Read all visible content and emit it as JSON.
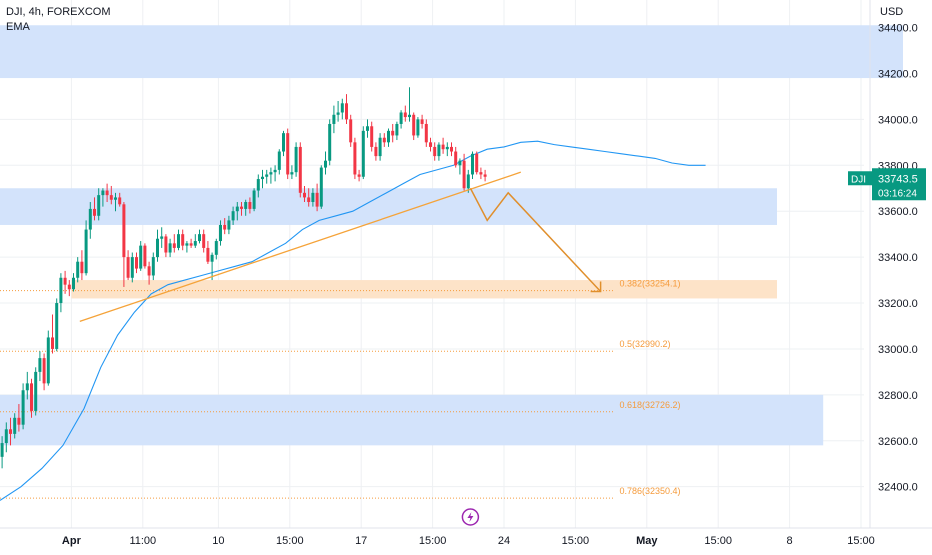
{
  "header": {
    "symbol_line": "DJI, 4h, FOREXCOM",
    "indicator": "EMA",
    "currency": "USD"
  },
  "colors": {
    "up": "#089981",
    "down": "#f23645",
    "ema": "#2196f3",
    "zone": "#d1e1fb",
    "fib_zone": "#fde3c8",
    "fib_text": "#f59b3c",
    "projection": "#e08f2c",
    "trendline": "#f5a339",
    "grid": "#eef0f3",
    "axis_text": "#131722",
    "price_tag": "#089981"
  },
  "chart_data": {
    "type": "candlestick",
    "title": "DJI, 4h, FOREXCOM",
    "ylabel": "USD",
    "ylim": [
      32220,
      34520
    ],
    "price_ticks": [
      34400.0,
      34200.0,
      34000.0,
      33800.0,
      33600.0,
      33400.0,
      33200.0,
      33000.0,
      32800.0,
      32600.0,
      32400.0
    ],
    "price_tick_labels": [
      "34400.0",
      "34200.0",
      "34000.0",
      "33800.0",
      "33600.0",
      "33400.0",
      "33200.0",
      "33000.0",
      "32800.0",
      "32600.0",
      "32400.0"
    ],
    "x_ticks": [
      {
        "label": "Apr",
        "bar": 17,
        "bold": true
      },
      {
        "label": "11:00",
        "bar": 34,
        "bold": false
      },
      {
        "label": "10",
        "bar": 52,
        "bold": false
      },
      {
        "label": "15:00",
        "bar": 69,
        "bold": false
      },
      {
        "label": "17",
        "bar": 86,
        "bold": false
      },
      {
        "label": "15:00",
        "bar": 103,
        "bold": false
      },
      {
        "label": "24",
        "bar": 120,
        "bold": false
      },
      {
        "label": "15:00",
        "bar": 137,
        "bold": false
      },
      {
        "label": "May",
        "bar": 154,
        "bold": true
      },
      {
        "label": "15:00",
        "bar": 171,
        "bold": false
      },
      {
        "label": "8",
        "bar": 188,
        "bold": false
      },
      {
        "label": "15:00",
        "bar": 205,
        "bold": false
      }
    ],
    "candles": [
      [
        32530,
        32620,
        32480,
        32590
      ],
      [
        32590,
        32680,
        32550,
        32650
      ],
      [
        32650,
        32700,
        32580,
        32630
      ],
      [
        32630,
        32720,
        32610,
        32700
      ],
      [
        32700,
        32760,
        32640,
        32670
      ],
      [
        32670,
        32850,
        32650,
        32820
      ],
      [
        32820,
        32900,
        32780,
        32850
      ],
      [
        32850,
        32870,
        32700,
        32730
      ],
      [
        32730,
        32920,
        32710,
        32900
      ],
      [
        32900,
        32990,
        32860,
        32960
      ],
      [
        32960,
        32980,
        32820,
        32850
      ],
      [
        32850,
        33080,
        32840,
        33050
      ],
      [
        33050,
        33150,
        32980,
        33000
      ],
      [
        33000,
        33220,
        32990,
        33200
      ],
      [
        33200,
        33330,
        33160,
        33310
      ],
      [
        33310,
        33340,
        33240,
        33280
      ],
      [
        33280,
        33300,
        33230,
        33260
      ],
      [
        33260,
        33330,
        33250,
        33310
      ],
      [
        33310,
        33400,
        33290,
        33380
      ],
      [
        33380,
        33430,
        33300,
        33330
      ],
      [
        33330,
        33560,
        33320,
        33520
      ],
      [
        33520,
        33640,
        33480,
        33610
      ],
      [
        33610,
        33660,
        33560,
        33580
      ],
      [
        33580,
        33700,
        33560,
        33670
      ],
      [
        33670,
        33700,
        33620,
        33690
      ],
      [
        33690,
        33720,
        33640,
        33670
      ],
      [
        33670,
        33710,
        33630,
        33650
      ],
      [
        33650,
        33680,
        33600,
        33660
      ],
      [
        33660,
        33680,
        33620,
        33630
      ],
      [
        33630,
        33640,
        33270,
        33400
      ],
      [
        33400,
        33430,
        33300,
        33310
      ],
      [
        33310,
        33420,
        33290,
        33400
      ],
      [
        33400,
        33420,
        33330,
        33350
      ],
      [
        33350,
        33470,
        33340,
        33450
      ],
      [
        33450,
        33460,
        33350,
        33360
      ],
      [
        33360,
        33380,
        33280,
        33320
      ],
      [
        33320,
        33420,
        33300,
        33400
      ],
      [
        33400,
        33520,
        33380,
        33480
      ],
      [
        33480,
        33530,
        33440,
        33490
      ],
      [
        33490,
        33500,
        33400,
        33420
      ],
      [
        33420,
        33480,
        33400,
        33460
      ],
      [
        33460,
        33500,
        33420,
        33440
      ],
      [
        33440,
        33520,
        33430,
        33500
      ],
      [
        33500,
        33520,
        33430,
        33450
      ],
      [
        33450,
        33470,
        33420,
        33460
      ],
      [
        33460,
        33480,
        33440,
        33450
      ],
      [
        33450,
        33500,
        33440,
        33470
      ],
      [
        33470,
        33520,
        33460,
        33500
      ],
      [
        33500,
        33520,
        33420,
        33440
      ],
      [
        33440,
        33470,
        33370,
        33380
      ],
      [
        33380,
        33420,
        33300,
        33410
      ],
      [
        33410,
        33480,
        33390,
        33470
      ],
      [
        33470,
        33560,
        33450,
        33540
      ],
      [
        33540,
        33570,
        33500,
        33520
      ],
      [
        33520,
        33580,
        33500,
        33560
      ],
      [
        33560,
        33620,
        33540,
        33600
      ],
      [
        33600,
        33640,
        33560,
        33620
      ],
      [
        33620,
        33640,
        33580,
        33610
      ],
      [
        33610,
        33650,
        33580,
        33640
      ],
      [
        33640,
        33660,
        33590,
        33610
      ],
      [
        33610,
        33700,
        33600,
        33690
      ],
      [
        33690,
        33760,
        33660,
        33740
      ],
      [
        33740,
        33780,
        33700,
        33750
      ],
      [
        33750,
        33780,
        33720,
        33760
      ],
      [
        33760,
        33790,
        33720,
        33770
      ],
      [
        33770,
        33800,
        33730,
        33780
      ],
      [
        33780,
        33870,
        33760,
        33860
      ],
      [
        33860,
        33950,
        33840,
        33940
      ],
      [
        33940,
        33960,
        33740,
        33760
      ],
      [
        33760,
        33800,
        33740,
        33770
      ],
      [
        33770,
        33900,
        33750,
        33880
      ],
      [
        33880,
        33900,
        33660,
        33680
      ],
      [
        33680,
        33710,
        33640,
        33660
      ],
      [
        33660,
        33700,
        33620,
        33640
      ],
      [
        33640,
        33700,
        33620,
        33680
      ],
      [
        33680,
        33720,
        33600,
        33620
      ],
      [
        33620,
        33800,
        33610,
        33790
      ],
      [
        33790,
        33860,
        33760,
        33820
      ],
      [
        33820,
        34000,
        33800,
        33980
      ],
      [
        33980,
        34060,
        33940,
        34020
      ],
      [
        34020,
        34080,
        33990,
        34030
      ],
      [
        34030,
        34090,
        34000,
        34070
      ],
      [
        34070,
        34110,
        33980,
        34000
      ],
      [
        34000,
        34020,
        33880,
        33900
      ],
      [
        33900,
        33920,
        33740,
        33760
      ],
      [
        33760,
        33780,
        33730,
        33750
      ],
      [
        33750,
        33970,
        33740,
        33950
      ],
      [
        33950,
        34000,
        33920,
        33970
      ],
      [
        33970,
        33990,
        33860,
        33880
      ],
      [
        33880,
        33900,
        33820,
        33840
      ],
      [
        33840,
        33940,
        33820,
        33920
      ],
      [
        33920,
        33940,
        33880,
        33900
      ],
      [
        33900,
        33960,
        33880,
        33950
      ],
      [
        33950,
        33980,
        33900,
        33930
      ],
      [
        33930,
        33990,
        33910,
        33980
      ],
      [
        33980,
        34040,
        33960,
        34030
      ],
      [
        34030,
        34060,
        33990,
        34010
      ],
      [
        34010,
        34140,
        33990,
        34020
      ],
      [
        34020,
        34030,
        33910,
        33930
      ],
      [
        33930,
        34010,
        33920,
        34000
      ],
      [
        34000,
        34020,
        33960,
        33980
      ],
      [
        33980,
        34000,
        33880,
        33900
      ],
      [
        33900,
        33920,
        33860,
        33880
      ],
      [
        33880,
        33900,
        33820,
        33840
      ],
      [
        33840,
        33900,
        33820,
        33890
      ],
      [
        33890,
        33920,
        33850,
        33870
      ],
      [
        33870,
        33900,
        33840,
        33880
      ],
      [
        33880,
        33900,
        33840,
        33860
      ],
      [
        33860,
        33880,
        33790,
        33800
      ],
      [
        33800,
        33830,
        33760,
        33820
      ],
      [
        33820,
        33850,
        33690,
        33700
      ],
      [
        33700,
        33780,
        33680,
        33760
      ],
      [
        33760,
        33860,
        33740,
        33850
      ],
      [
        33850,
        33860,
        33760,
        33770
      ],
      [
        33770,
        33790,
        33740,
        33760
      ],
      [
        33760,
        33780,
        33730,
        33750
      ]
    ],
    "ema": [
      [
        0,
        32340
      ],
      [
        5,
        32400
      ],
      [
        10,
        32480
      ],
      [
        15,
        32580
      ],
      [
        20,
        32740
      ],
      [
        24,
        32920
      ],
      [
        28,
        33060
      ],
      [
        32,
        33160
      ],
      [
        36,
        33240
      ],
      [
        40,
        33280
      ],
      [
        44,
        33300
      ],
      [
        48,
        33320
      ],
      [
        52,
        33340
      ],
      [
        56,
        33360
      ],
      [
        60,
        33380
      ],
      [
        64,
        33420
      ],
      [
        68,
        33460
      ],
      [
        72,
        33520
      ],
      [
        76,
        33560
      ],
      [
        80,
        33580
      ],
      [
        84,
        33600
      ],
      [
        88,
        33640
      ],
      [
        92,
        33680
      ],
      [
        96,
        33720
      ],
      [
        100,
        33760
      ],
      [
        104,
        33780
      ],
      [
        108,
        33800
      ],
      [
        112,
        33840
      ],
      [
        116,
        33870
      ],
      [
        120,
        33880
      ],
      [
        124,
        33900
      ],
      [
        128,
        33905
      ],
      [
        132,
        33890
      ],
      [
        136,
        33880
      ],
      [
        140,
        33870
      ],
      [
        144,
        33860
      ],
      [
        148,
        33850
      ],
      [
        152,
        33840
      ],
      [
        156,
        33830
      ],
      [
        160,
        33810
      ],
      [
        164,
        33800
      ],
      [
        168,
        33800
      ]
    ],
    "zones": [
      {
        "x1": -1,
        "x2": 215,
        "y_top": 34410,
        "y_bottom": 34180
      },
      {
        "x1": -1,
        "x2": 185,
        "y_top": 33700,
        "y_bottom": 33540
      },
      {
        "x1": -1,
        "x2": 196,
        "y_top": 32800,
        "y_bottom": 32580
      }
    ],
    "fib_zone": {
      "x1": 17,
      "x2": 185,
      "y_top": 33300,
      "y_bottom": 33220
    },
    "fib_levels": [
      {
        "label": "0.382(33254.1)",
        "price": 33254.1
      },
      {
        "label": "0.5(32990.2)",
        "price": 32990.2
      },
      {
        "label": "0.618(32726.2)",
        "price": 32726.2
      },
      {
        "label": "0.786(32350.4)",
        "price": 32350.4
      }
    ],
    "trendline": [
      [
        19,
        33120
      ],
      [
        124,
        33770
      ]
    ],
    "projection": [
      [
        112,
        33700
      ],
      [
        116,
        33560
      ],
      [
        121,
        33680
      ],
      [
        143,
        33250
      ]
    ],
    "last_price": {
      "label": "33743.5",
      "countdown": "03:16:24",
      "ticker": "DJI",
      "price": 33743.5
    }
  }
}
